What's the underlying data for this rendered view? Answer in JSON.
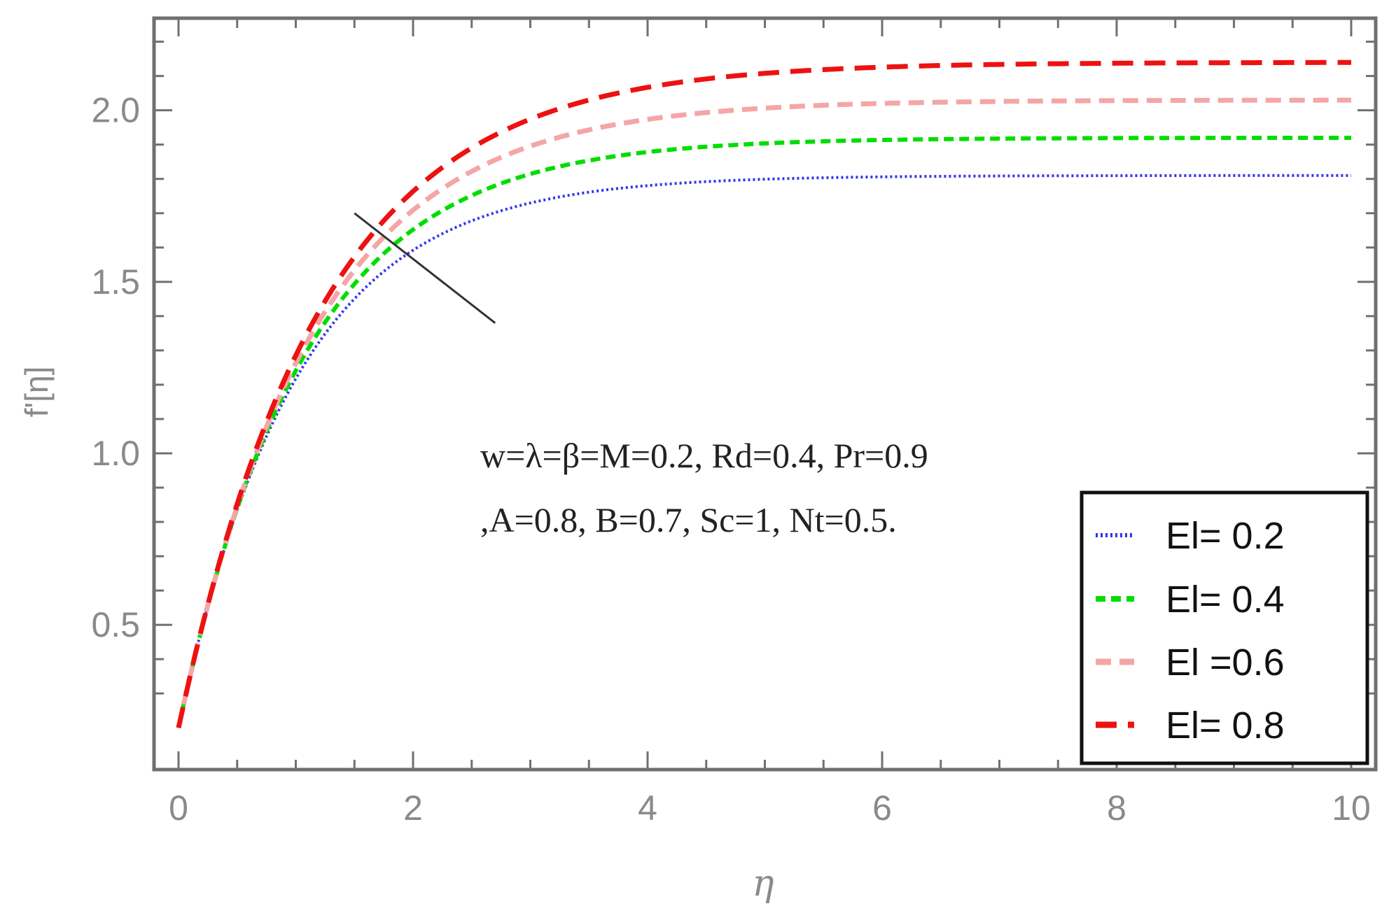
{
  "chart_data": {
    "type": "line",
    "title": "",
    "xlabel": "η",
    "ylabel": "f'[η]",
    "xlim": [
      0,
      10
    ],
    "ylim": [
      0.18,
      2.24
    ],
    "x_ticks": [
      "0",
      "2",
      "4",
      "6",
      "8",
      "10"
    ],
    "y_ticks": [
      "0.5",
      "1.0",
      "1.5",
      "2.0"
    ],
    "x_tick_values": [
      0,
      2,
      4,
      6,
      8,
      10
    ],
    "y_tick_values": [
      0.5,
      1.0,
      1.5,
      2.0
    ],
    "grid": false,
    "legend_position": "bottom-right",
    "annotation_lines": [
      "w=λ=β=M=0.2, Rd=0.4, Pr=0.9",
      ",A=0.8, B=0.7, Sc=1, Nt=0.5."
    ],
    "arrow_line": {
      "from": [
        1.5,
        1.7
      ],
      "to": [
        2.7,
        1.38
      ]
    },
    "series": [
      {
        "name": "El= 0.2",
        "color": "#3333ee",
        "style": "dotted",
        "start": 0.2,
        "end": 1.81,
        "rate": 1.0
      },
      {
        "name": "El= 0.4",
        "color": "#00dd00",
        "style": "dashed-short",
        "start": 0.2,
        "end": 1.92,
        "rate": 0.93
      },
      {
        "name": "El =0.6",
        "color": "#f4a6a6",
        "style": "dashed-medium",
        "start": 0.2,
        "end": 2.03,
        "rate": 0.87
      },
      {
        "name": "El= 0.8",
        "color": "#ee1111",
        "style": "dashed-long",
        "start": 0.2,
        "end": 2.14,
        "rate": 0.82
      }
    ]
  }
}
